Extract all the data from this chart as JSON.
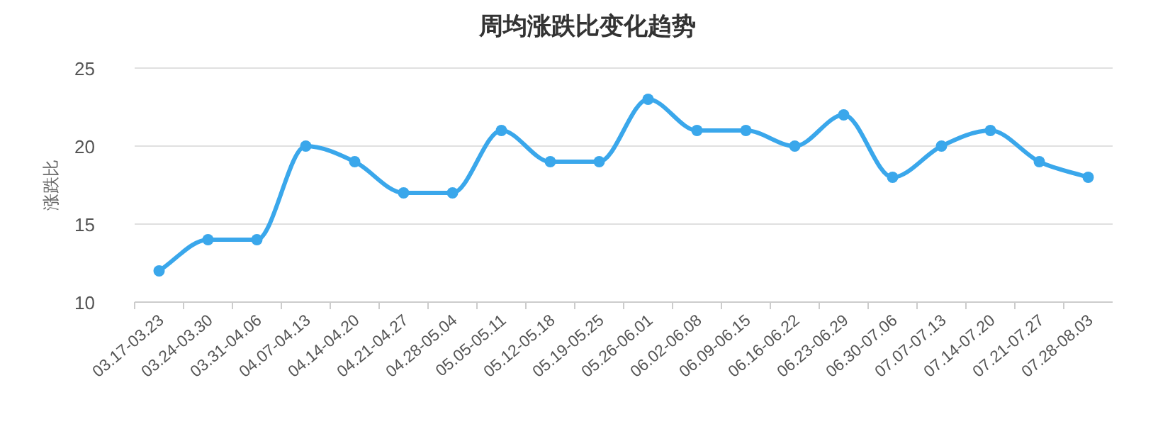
{
  "chart_data": {
    "type": "line",
    "title": "周均涨跌比变化趋势",
    "ylabel": "涨跌比",
    "categories": [
      "03.17-03.23",
      "03.24-03.30",
      "03.31-04.06",
      "04.07-04.13",
      "04.14-04.20",
      "04.21-04.27",
      "04.28-05.04",
      "05.05-05.11",
      "05.12-05.18",
      "05.19-05.25",
      "05.26-06.01",
      "06.02-06.08",
      "06.09-06.15",
      "06.16-06.22",
      "06.23-06.29",
      "06.30-07.06",
      "07.07-07.13",
      "07.14-07.20",
      "07.21-07.27",
      "07.28-08.03"
    ],
    "series": [
      {
        "color": "#3aa7eb",
        "values": [
          12,
          14,
          14,
          20,
          19,
          17,
          17,
          21,
          19,
          19,
          23,
          21,
          21,
          20,
          22,
          18,
          20,
          21,
          19,
          18
        ]
      }
    ],
    "ylim": [
      10,
      25
    ],
    "yticks": [
      10,
      15,
      20,
      25
    ],
    "grid": "y",
    "marker": "circle",
    "line_style": "solid"
  }
}
